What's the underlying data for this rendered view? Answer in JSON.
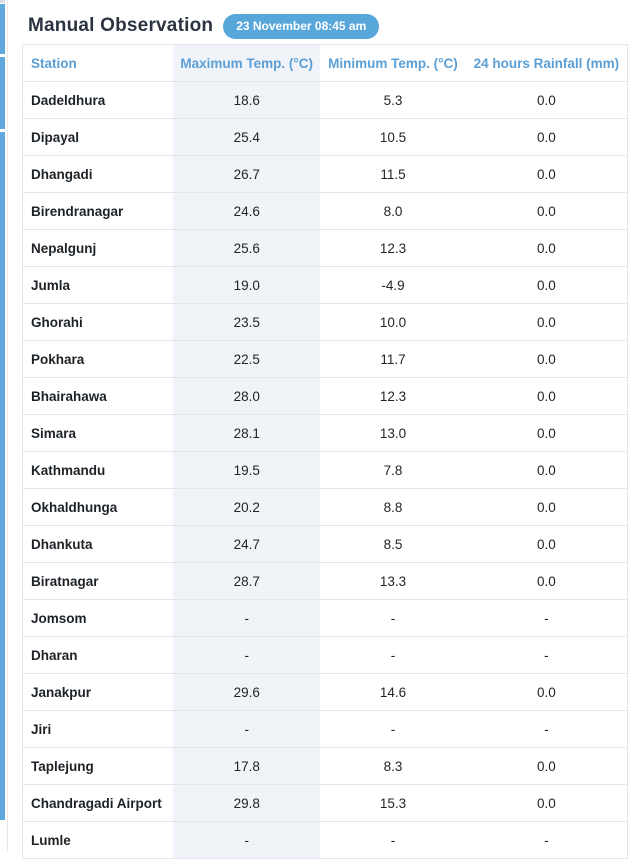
{
  "page": {
    "title": "Manual Observation",
    "timestamp_badge": "23 November 08:45 am"
  },
  "colors": {
    "badge_bg": "#57a7db",
    "header_text_blue": "#5a9fd6",
    "title_text": "#2b3440",
    "row_border": "#e3e6ea",
    "highlight_column_bg": "#f0f3f7",
    "left_edge_strip": "#60a9dd"
  },
  "table": {
    "columns": [
      {
        "label": "Station"
      },
      {
        "label": "Maximum Temp. (°C)"
      },
      {
        "label": "Minimum Temp. (°C)"
      },
      {
        "label": "24 hours Rainfall (mm)"
      }
    ],
    "rows": [
      [
        "Dadeldhura",
        "18.6",
        "5.3",
        "0.0"
      ],
      [
        "Dipayal",
        "25.4",
        "10.5",
        "0.0"
      ],
      [
        "Dhangadi",
        "26.7",
        "11.5",
        "0.0"
      ],
      [
        "Birendranagar",
        "24.6",
        "8.0",
        "0.0"
      ],
      [
        "Nepalgunj",
        "25.6",
        "12.3",
        "0.0"
      ],
      [
        "Jumla",
        "19.0",
        "-4.9",
        "0.0"
      ],
      [
        "Ghorahi",
        "23.5",
        "10.0",
        "0.0"
      ],
      [
        "Pokhara",
        "22.5",
        "11.7",
        "0.0"
      ],
      [
        "Bhairahawa",
        "28.0",
        "12.3",
        "0.0"
      ],
      [
        "Simara",
        "28.1",
        "13.0",
        "0.0"
      ],
      [
        "Kathmandu",
        "19.5",
        "7.8",
        "0.0"
      ],
      [
        "Okhaldhunga",
        "20.2",
        "8.8",
        "0.0"
      ],
      [
        "Dhankuta",
        "24.7",
        "8.5",
        "0.0"
      ],
      [
        "Biratnagar",
        "28.7",
        "13.3",
        "0.0"
      ],
      [
        "Jomsom",
        "-",
        "-",
        "-"
      ],
      [
        "Dharan",
        "-",
        "-",
        "-"
      ],
      [
        "Janakpur",
        "29.6",
        "14.6",
        "0.0"
      ],
      [
        "Jiri",
        "-",
        "-",
        "-"
      ],
      [
        "Taplejung",
        "17.8",
        "8.3",
        "0.0"
      ],
      [
        "Chandragadi Airport",
        "29.8",
        "15.3",
        "0.0"
      ],
      [
        "Lumle",
        "-",
        "-",
        "-"
      ]
    ]
  }
}
